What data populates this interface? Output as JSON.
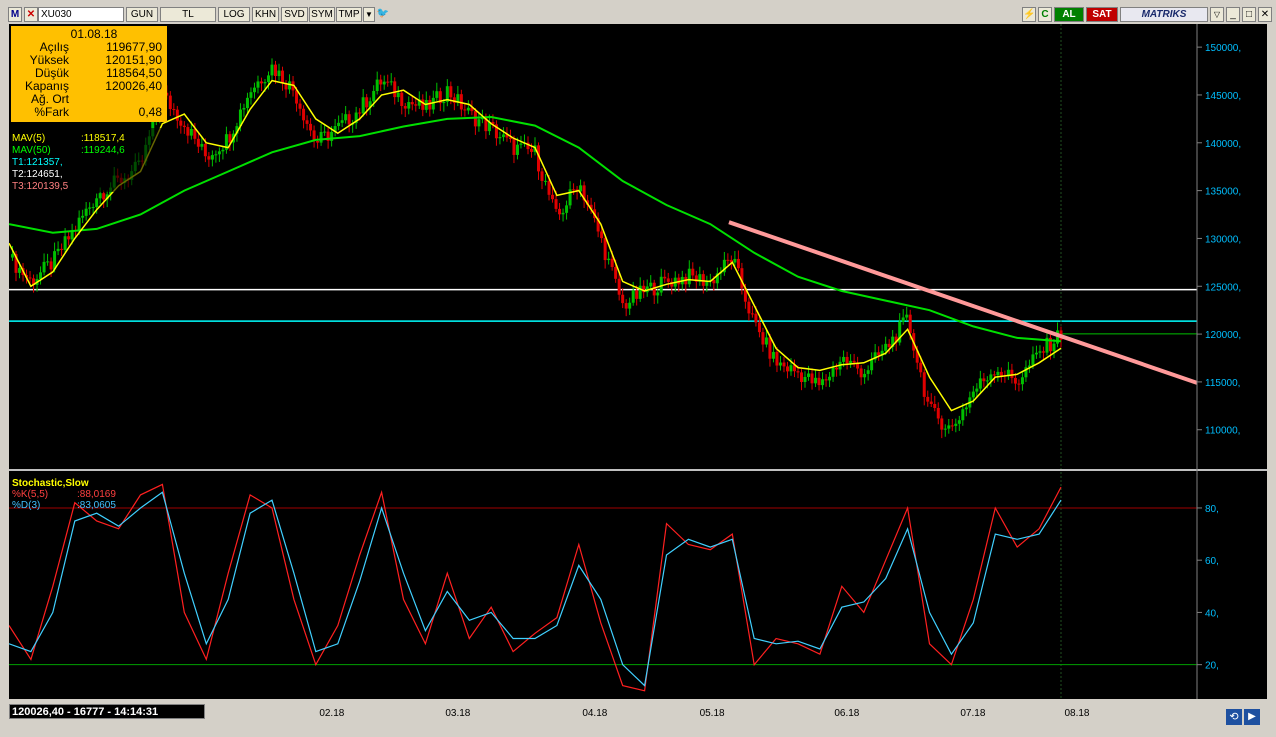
{
  "toolbar": {
    "logo": "M",
    "symbol": "XU030",
    "buttons": [
      "GUN",
      "TL",
      "LOG",
      "KHN",
      "SVD",
      "SYM",
      "TMP"
    ],
    "buy_label": "AL",
    "sell_label": "SAT",
    "brand": "MATRIKS"
  },
  "info_box": {
    "date": "01.08.18",
    "rows": [
      {
        "label": "Açılış",
        "value": "119677,90"
      },
      {
        "label": "Yüksek",
        "value": "120151,90"
      },
      {
        "label": "Düşük",
        "value": "118564,50"
      },
      {
        "label": "Kapanış",
        "value": "120026,40"
      },
      {
        "label": "Ağ. Ort",
        "value": ""
      },
      {
        "label": "%Fark",
        "value": "0,48"
      }
    ]
  },
  "indicators": [
    {
      "text": "MAV(5)",
      "value": ":118517,4",
      "color": "#ffff00"
    },
    {
      "text": "MAV(50)",
      "value": ":119244,6",
      "color": "#00ff00"
    },
    {
      "text": "T1:121357,",
      "value": "",
      "color": "#00ffff"
    },
    {
      "text": "T2:124651,",
      "value": "",
      "color": "#ffffff"
    },
    {
      "text": "T3:120139,5",
      "value": "",
      "color": "#ff8080"
    }
  ],
  "stochastic": {
    "title": "Stochastic,Slow",
    "k_label": "%K(5,5)",
    "k_value": ":88,0169",
    "d_label": "%D(3)",
    "d_value": ":83,0605"
  },
  "status": {
    "readout": "120026,40 - 16777 - 14:14:31"
  },
  "chart_data": {
    "type": "candlestick",
    "x_ticks": [
      "02.18",
      "03.18",
      "04.18",
      "05.18",
      "06.18",
      "07.18",
      "08.18"
    ],
    "price_axis": {
      "ticks": [
        "150000,",
        "145000,",
        "140000,",
        "135000,",
        "130000,",
        "125000,",
        "120000,",
        "115000,",
        "110000,"
      ],
      "range": [
        106000,
        152000
      ]
    },
    "stoch_axis": {
      "ticks": [
        "80,",
        "60,",
        "40,",
        "20,"
      ],
      "range": [
        8,
        93
      ]
    },
    "horizontal_lines": [
      {
        "value": 124651,
        "color": "#ffffff"
      },
      {
        "value": 121357,
        "color": "#00ffff"
      }
    ],
    "trendline": {
      "from": {
        "t": 0.657,
        "v": 131700
      },
      "to": {
        "t": 1.0,
        "v": 114900
      },
      "color": "#ff9999"
    },
    "last_close": 120026.4,
    "close_path": [
      {
        "t": 0.0,
        "v": 128000
      },
      {
        "t": 0.02,
        "v": 125500
      },
      {
        "t": 0.04,
        "v": 127500
      },
      {
        "t": 0.06,
        "v": 131000
      },
      {
        "t": 0.08,
        "v": 134500
      },
      {
        "t": 0.1,
        "v": 136000
      },
      {
        "t": 0.12,
        "v": 137500
      },
      {
        "t": 0.14,
        "v": 145000
      },
      {
        "t": 0.16,
        "v": 142000
      },
      {
        "t": 0.18,
        "v": 138500
      },
      {
        "t": 0.2,
        "v": 140500
      },
      {
        "t": 0.22,
        "v": 145500
      },
      {
        "t": 0.24,
        "v": 148000
      },
      {
        "t": 0.26,
        "v": 145500
      },
      {
        "t": 0.28,
        "v": 140000
      },
      {
        "t": 0.3,
        "v": 141500
      },
      {
        "t": 0.32,
        "v": 143500
      },
      {
        "t": 0.34,
        "v": 146500
      },
      {
        "t": 0.36,
        "v": 144500
      },
      {
        "t": 0.38,
        "v": 143500
      },
      {
        "t": 0.4,
        "v": 145500
      },
      {
        "t": 0.42,
        "v": 143000
      },
      {
        "t": 0.44,
        "v": 141500
      },
      {
        "t": 0.46,
        "v": 139500
      },
      {
        "t": 0.48,
        "v": 139000
      },
      {
        "t": 0.5,
        "v": 132000
      },
      {
        "t": 0.52,
        "v": 136000
      },
      {
        "t": 0.54,
        "v": 130000
      },
      {
        "t": 0.56,
        "v": 123000
      },
      {
        "t": 0.58,
        "v": 124500
      },
      {
        "t": 0.6,
        "v": 125500
      },
      {
        "t": 0.62,
        "v": 126000
      },
      {
        "t": 0.64,
        "v": 125500
      },
      {
        "t": 0.66,
        "v": 128000
      },
      {
        "t": 0.68,
        "v": 121000
      },
      {
        "t": 0.7,
        "v": 117000
      },
      {
        "t": 0.72,
        "v": 116000
      },
      {
        "t": 0.74,
        "v": 114500
      },
      {
        "t": 0.76,
        "v": 117500
      },
      {
        "t": 0.78,
        "v": 116000
      },
      {
        "t": 0.8,
        "v": 118500
      },
      {
        "t": 0.82,
        "v": 121500
      },
      {
        "t": 0.84,
        "v": 112000
      },
      {
        "t": 0.86,
        "v": 110000
      },
      {
        "t": 0.88,
        "v": 114000
      },
      {
        "t": 0.9,
        "v": 116500
      },
      {
        "t": 0.92,
        "v": 115000
      },
      {
        "t": 0.94,
        "v": 118000
      },
      {
        "t": 0.96,
        "v": 120026
      }
    ],
    "mav5_path": [
      {
        "t": 0.0,
        "v": 129500
      },
      {
        "t": 0.02,
        "v": 125000
      },
      {
        "t": 0.04,
        "v": 126500
      },
      {
        "t": 0.06,
        "v": 130000
      },
      {
        "t": 0.08,
        "v": 133000
      },
      {
        "t": 0.1,
        "v": 135500
      },
      {
        "t": 0.12,
        "v": 137000
      },
      {
        "t": 0.14,
        "v": 142000
      },
      {
        "t": 0.16,
        "v": 143000
      },
      {
        "t": 0.18,
        "v": 140000
      },
      {
        "t": 0.2,
        "v": 139500
      },
      {
        "t": 0.22,
        "v": 143500
      },
      {
        "t": 0.24,
        "v": 146500
      },
      {
        "t": 0.26,
        "v": 146000
      },
      {
        "t": 0.28,
        "v": 142500
      },
      {
        "t": 0.3,
        "v": 141000
      },
      {
        "t": 0.32,
        "v": 142500
      },
      {
        "t": 0.34,
        "v": 145000
      },
      {
        "t": 0.36,
        "v": 145500
      },
      {
        "t": 0.38,
        "v": 144000
      },
      {
        "t": 0.4,
        "v": 144500
      },
      {
        "t": 0.42,
        "v": 144000
      },
      {
        "t": 0.44,
        "v": 142000
      },
      {
        "t": 0.46,
        "v": 140500
      },
      {
        "t": 0.48,
        "v": 139500
      },
      {
        "t": 0.5,
        "v": 134500
      },
      {
        "t": 0.52,
        "v": 135000
      },
      {
        "t": 0.54,
        "v": 131500
      },
      {
        "t": 0.56,
        "v": 125500
      },
      {
        "t": 0.58,
        "v": 124500
      },
      {
        "t": 0.6,
        "v": 125200
      },
      {
        "t": 0.62,
        "v": 125700
      },
      {
        "t": 0.64,
        "v": 125500
      },
      {
        "t": 0.66,
        "v": 127500
      },
      {
        "t": 0.68,
        "v": 123000
      },
      {
        "t": 0.7,
        "v": 118500
      },
      {
        "t": 0.72,
        "v": 116500
      },
      {
        "t": 0.74,
        "v": 116200
      },
      {
        "t": 0.76,
        "v": 116800
      },
      {
        "t": 0.78,
        "v": 117000
      },
      {
        "t": 0.8,
        "v": 118000
      },
      {
        "t": 0.82,
        "v": 120500
      },
      {
        "t": 0.84,
        "v": 115500
      },
      {
        "t": 0.86,
        "v": 112000
      },
      {
        "t": 0.88,
        "v": 113000
      },
      {
        "t": 0.9,
        "v": 115500
      },
      {
        "t": 0.92,
        "v": 115800
      },
      {
        "t": 0.94,
        "v": 117000
      },
      {
        "t": 0.96,
        "v": 118517
      }
    ],
    "mav50_path": [
      {
        "t": 0.0,
        "v": 131500
      },
      {
        "t": 0.04,
        "v": 130600
      },
      {
        "t": 0.08,
        "v": 131000
      },
      {
        "t": 0.12,
        "v": 132500
      },
      {
        "t": 0.16,
        "v": 135000
      },
      {
        "t": 0.2,
        "v": 137000
      },
      {
        "t": 0.24,
        "v": 139000
      },
      {
        "t": 0.28,
        "v": 140300
      },
      {
        "t": 0.32,
        "v": 140700
      },
      {
        "t": 0.36,
        "v": 141700
      },
      {
        "t": 0.4,
        "v": 142500
      },
      {
        "t": 0.44,
        "v": 142700
      },
      {
        "t": 0.48,
        "v": 141800
      },
      {
        "t": 0.52,
        "v": 139500
      },
      {
        "t": 0.56,
        "v": 136000
      },
      {
        "t": 0.6,
        "v": 133500
      },
      {
        "t": 0.64,
        "v": 131500
      },
      {
        "t": 0.68,
        "v": 128500
      },
      {
        "t": 0.72,
        "v": 126000
      },
      {
        "t": 0.76,
        "v": 124500
      },
      {
        "t": 0.8,
        "v": 123500
      },
      {
        "t": 0.84,
        "v": 122500
      },
      {
        "t": 0.88,
        "v": 120800
      },
      {
        "t": 0.92,
        "v": 119600
      },
      {
        "t": 0.96,
        "v": 119244
      }
    ],
    "stoch_k": [
      {
        "t": 0.0,
        "v": 35
      },
      {
        "t": 0.02,
        "v": 22
      },
      {
        "t": 0.04,
        "v": 50
      },
      {
        "t": 0.06,
        "v": 82
      },
      {
        "t": 0.08,
        "v": 75
      },
      {
        "t": 0.1,
        "v": 72
      },
      {
        "t": 0.12,
        "v": 85
      },
      {
        "t": 0.14,
        "v": 89
      },
      {
        "t": 0.16,
        "v": 40
      },
      {
        "t": 0.18,
        "v": 22
      },
      {
        "t": 0.2,
        "v": 55
      },
      {
        "t": 0.22,
        "v": 85
      },
      {
        "t": 0.24,
        "v": 80
      },
      {
        "t": 0.26,
        "v": 45
      },
      {
        "t": 0.28,
        "v": 20
      },
      {
        "t": 0.3,
        "v": 35
      },
      {
        "t": 0.32,
        "v": 62
      },
      {
        "t": 0.34,
        "v": 86
      },
      {
        "t": 0.36,
        "v": 45
      },
      {
        "t": 0.38,
        "v": 28
      },
      {
        "t": 0.4,
        "v": 55
      },
      {
        "t": 0.42,
        "v": 30
      },
      {
        "t": 0.44,
        "v": 42
      },
      {
        "t": 0.46,
        "v": 25
      },
      {
        "t": 0.48,
        "v": 32
      },
      {
        "t": 0.5,
        "v": 38
      },
      {
        "t": 0.52,
        "v": 66
      },
      {
        "t": 0.54,
        "v": 36
      },
      {
        "t": 0.56,
        "v": 12
      },
      {
        "t": 0.58,
        "v": 10
      },
      {
        "t": 0.6,
        "v": 74
      },
      {
        "t": 0.62,
        "v": 66
      },
      {
        "t": 0.64,
        "v": 64
      },
      {
        "t": 0.66,
        "v": 70
      },
      {
        "t": 0.68,
        "v": 20
      },
      {
        "t": 0.7,
        "v": 30
      },
      {
        "t": 0.72,
        "v": 28
      },
      {
        "t": 0.74,
        "v": 24
      },
      {
        "t": 0.76,
        "v": 50
      },
      {
        "t": 0.78,
        "v": 40
      },
      {
        "t": 0.8,
        "v": 60
      },
      {
        "t": 0.82,
        "v": 80
      },
      {
        "t": 0.84,
        "v": 28
      },
      {
        "t": 0.86,
        "v": 20
      },
      {
        "t": 0.88,
        "v": 45
      },
      {
        "t": 0.9,
        "v": 80
      },
      {
        "t": 0.92,
        "v": 65
      },
      {
        "t": 0.94,
        "v": 72
      },
      {
        "t": 0.96,
        "v": 88
      }
    ],
    "stoch_d": [
      {
        "t": 0.0,
        "v": 28
      },
      {
        "t": 0.02,
        "v": 25
      },
      {
        "t": 0.04,
        "v": 40
      },
      {
        "t": 0.06,
        "v": 75
      },
      {
        "t": 0.08,
        "v": 78
      },
      {
        "t": 0.1,
        "v": 73
      },
      {
        "t": 0.12,
        "v": 80
      },
      {
        "t": 0.14,
        "v": 86
      },
      {
        "t": 0.16,
        "v": 55
      },
      {
        "t": 0.18,
        "v": 28
      },
      {
        "t": 0.2,
        "v": 45
      },
      {
        "t": 0.22,
        "v": 78
      },
      {
        "t": 0.24,
        "v": 83
      },
      {
        "t": 0.26,
        "v": 55
      },
      {
        "t": 0.28,
        "v": 25
      },
      {
        "t": 0.3,
        "v": 28
      },
      {
        "t": 0.32,
        "v": 52
      },
      {
        "t": 0.34,
        "v": 80
      },
      {
        "t": 0.36,
        "v": 55
      },
      {
        "t": 0.38,
        "v": 33
      },
      {
        "t": 0.4,
        "v": 48
      },
      {
        "t": 0.42,
        "v": 37
      },
      {
        "t": 0.44,
        "v": 40
      },
      {
        "t": 0.46,
        "v": 30
      },
      {
        "t": 0.48,
        "v": 30
      },
      {
        "t": 0.5,
        "v": 35
      },
      {
        "t": 0.52,
        "v": 58
      },
      {
        "t": 0.54,
        "v": 45
      },
      {
        "t": 0.56,
        "v": 20
      },
      {
        "t": 0.58,
        "v": 12
      },
      {
        "t": 0.6,
        "v": 62
      },
      {
        "t": 0.62,
        "v": 68
      },
      {
        "t": 0.64,
        "v": 65
      },
      {
        "t": 0.66,
        "v": 68
      },
      {
        "t": 0.68,
        "v": 30
      },
      {
        "t": 0.7,
        "v": 28
      },
      {
        "t": 0.72,
        "v": 29
      },
      {
        "t": 0.74,
        "v": 26
      },
      {
        "t": 0.76,
        "v": 42
      },
      {
        "t": 0.78,
        "v": 44
      },
      {
        "t": 0.8,
        "v": 53
      },
      {
        "t": 0.82,
        "v": 72
      },
      {
        "t": 0.84,
        "v": 40
      },
      {
        "t": 0.86,
        "v": 24
      },
      {
        "t": 0.88,
        "v": 36
      },
      {
        "t": 0.9,
        "v": 70
      },
      {
        "t": 0.92,
        "v": 68
      },
      {
        "t": 0.94,
        "v": 70
      },
      {
        "t": 0.96,
        "v": 83
      }
    ]
  }
}
